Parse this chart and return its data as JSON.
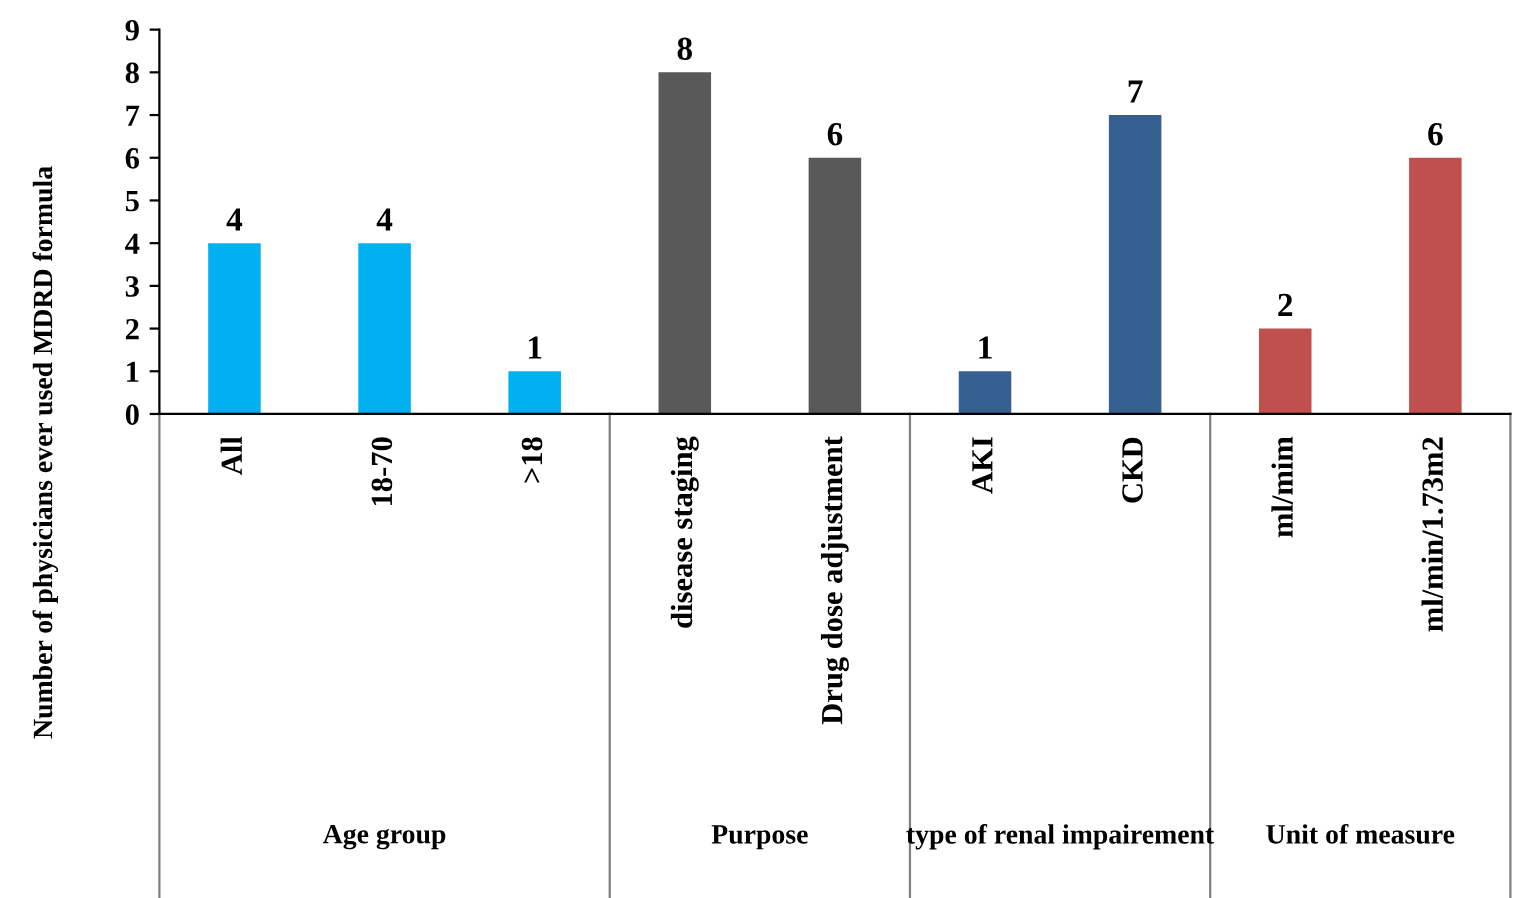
{
  "chart_data": {
    "type": "bar",
    "ylabel": "Number of physicians ever used MDRD formula",
    "categories": [
      "All",
      "18-70",
      ">18",
      "disease staging",
      "Drug dose adjustment",
      "AKI",
      "CKD",
      "ml/mim",
      "ml/min/1.73m2"
    ],
    "values": [
      4,
      4,
      1,
      8,
      6,
      1,
      7,
      2,
      6
    ],
    "colors": [
      "#00b0f0",
      "#00b0f0",
      "#00b0f0",
      "#595959",
      "#595959",
      "#376092",
      "#376092",
      "#c0504d",
      "#c0504d"
    ],
    "ylim": [
      0,
      9
    ],
    "yticks": [
      0,
      1,
      2,
      3,
      4,
      5,
      6,
      7,
      8,
      9
    ],
    "data_labels": true,
    "grid": false,
    "annotations": [
      "Age group",
      "Purpose",
      "type of renal impairement",
      "Unit of measure"
    ]
  }
}
